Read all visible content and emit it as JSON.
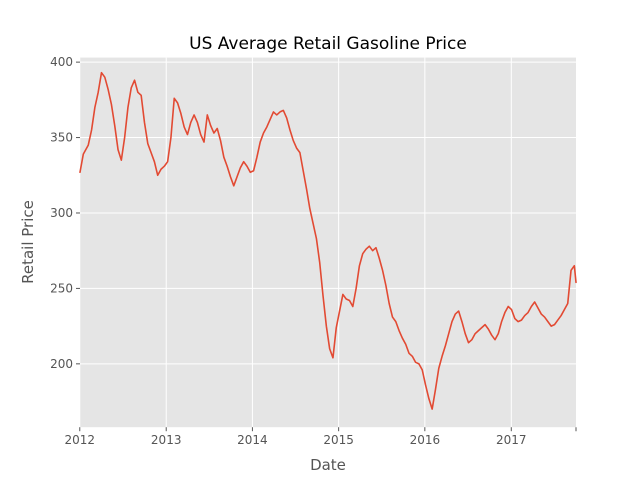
{
  "chart_data": {
    "type": "line",
    "title": "US Average Retail Gasoline Price",
    "xlabel": "Date",
    "ylabel": "Retail Price",
    "grid": true,
    "colors": {
      "line": "#e24a33",
      "plot_background": "#e5e5e5",
      "grid": "#ffffff",
      "axis_text": "#555555"
    },
    "xlim": [
      "2012-01-02",
      "2017-10-02"
    ],
    "ylim": [
      158,
      403
    ],
    "x_tick_labels": [
      "2012",
      "2013",
      "2014",
      "2015",
      "2016",
      "2017"
    ],
    "y_tick_labels": [
      "200",
      "250",
      "300",
      "350",
      "400"
    ],
    "series": [
      {
        "x": [
          "2012-01-02",
          "2012-01-16",
          "2012-02-06",
          "2012-02-20",
          "2012-03-05",
          "2012-03-19",
          "2012-04-02",
          "2012-04-16",
          "2012-04-30",
          "2012-05-14",
          "2012-05-28",
          "2012-06-11",
          "2012-06-25",
          "2012-07-09",
          "2012-07-23",
          "2012-08-06",
          "2012-08-20",
          "2012-09-03",
          "2012-09-17",
          "2012-10-01",
          "2012-10-15",
          "2012-10-29",
          "2012-11-12",
          "2012-11-26",
          "2012-12-10",
          "2012-12-24",
          "2013-01-07",
          "2013-01-21",
          "2013-02-04",
          "2013-02-18",
          "2013-03-04",
          "2013-03-18",
          "2013-04-01",
          "2013-04-15",
          "2013-04-29",
          "2013-05-13",
          "2013-05-27",
          "2013-06-10",
          "2013-06-24",
          "2013-07-08",
          "2013-07-22",
          "2013-08-05",
          "2013-08-19",
          "2013-09-02",
          "2013-09-16",
          "2013-09-30",
          "2013-10-14",
          "2013-10-28",
          "2013-11-11",
          "2013-11-25",
          "2013-12-09",
          "2013-12-23",
          "2014-01-06",
          "2014-01-20",
          "2014-02-03",
          "2014-02-17",
          "2014-03-03",
          "2014-03-17",
          "2014-03-31",
          "2014-04-14",
          "2014-04-28",
          "2014-05-12",
          "2014-05-26",
          "2014-06-09",
          "2014-06-23",
          "2014-07-07",
          "2014-07-21",
          "2014-08-04",
          "2014-08-18",
          "2014-09-01",
          "2014-09-15",
          "2014-09-29",
          "2014-10-13",
          "2014-10-27",
          "2014-11-10",
          "2014-11-24",
          "2014-12-08",
          "2014-12-22",
          "2015-01-05",
          "2015-01-19",
          "2015-02-02",
          "2015-02-16",
          "2015-03-02",
          "2015-03-16",
          "2015-03-30",
          "2015-04-13",
          "2015-04-27",
          "2015-05-11",
          "2015-05-25",
          "2015-06-08",
          "2015-06-22",
          "2015-07-06",
          "2015-07-20",
          "2015-08-03",
          "2015-08-17",
          "2015-08-31",
          "2015-09-14",
          "2015-09-28",
          "2015-10-12",
          "2015-10-26",
          "2015-11-09",
          "2015-11-23",
          "2015-12-07",
          "2015-12-21",
          "2016-01-04",
          "2016-01-18",
          "2016-02-01",
          "2016-02-15",
          "2016-02-29",
          "2016-03-14",
          "2016-03-28",
          "2016-04-11",
          "2016-04-25",
          "2016-05-09",
          "2016-05-23",
          "2016-06-06",
          "2016-06-20",
          "2016-07-04",
          "2016-07-18",
          "2016-08-01",
          "2016-08-15",
          "2016-08-29",
          "2016-09-12",
          "2016-09-26",
          "2016-10-10",
          "2016-10-24",
          "2016-11-07",
          "2016-11-21",
          "2016-12-05",
          "2016-12-19",
          "2017-01-02",
          "2017-01-16",
          "2017-01-30",
          "2017-02-13",
          "2017-02-27",
          "2017-03-13",
          "2017-03-27",
          "2017-04-10",
          "2017-04-24",
          "2017-05-08",
          "2017-05-22",
          "2017-06-05",
          "2017-06-19",
          "2017-07-03",
          "2017-07-17",
          "2017-07-31",
          "2017-08-14",
          "2017-08-28",
          "2017-09-11",
          "2017-09-25",
          "2017-10-02"
        ],
        "y": [
          327,
          339,
          345,
          355,
          370,
          380,
          393,
          390,
          382,
          372,
          358,
          342,
          335,
          350,
          370,
          383,
          388,
          380,
          378,
          360,
          346,
          340,
          334,
          325,
          329,
          331,
          334,
          350,
          376,
          373,
          366,
          357,
          352,
          360,
          365,
          360,
          352,
          347,
          365,
          358,
          353,
          356,
          348,
          337,
          331,
          324,
          318,
          324,
          330,
          334,
          331,
          327,
          328,
          337,
          347,
          353,
          357,
          362,
          367,
          365,
          367,
          368,
          363,
          355,
          348,
          343,
          340,
          328,
          316,
          303,
          293,
          283,
          267,
          245,
          225,
          210,
          204,
          224,
          235,
          246,
          243,
          242,
          238,
          250,
          265,
          273,
          276,
          278,
          275,
          277,
          270,
          262,
          252,
          240,
          231,
          228,
          222,
          217,
          213,
          207,
          205,
          201,
          200,
          196,
          186,
          177,
          170,
          183,
          197,
          205,
          212,
          220,
          228,
          233,
          235,
          228,
          220,
          214,
          216,
          220,
          222,
          224,
          226,
          223,
          219,
          216,
          220,
          228,
          234,
          238,
          236,
          230,
          228,
          229,
          232,
          234,
          238,
          241,
          237,
          233,
          231,
          228,
          225,
          226,
          229,
          232,
          236,
          240,
          262,
          265,
          254
        ]
      }
    ]
  }
}
